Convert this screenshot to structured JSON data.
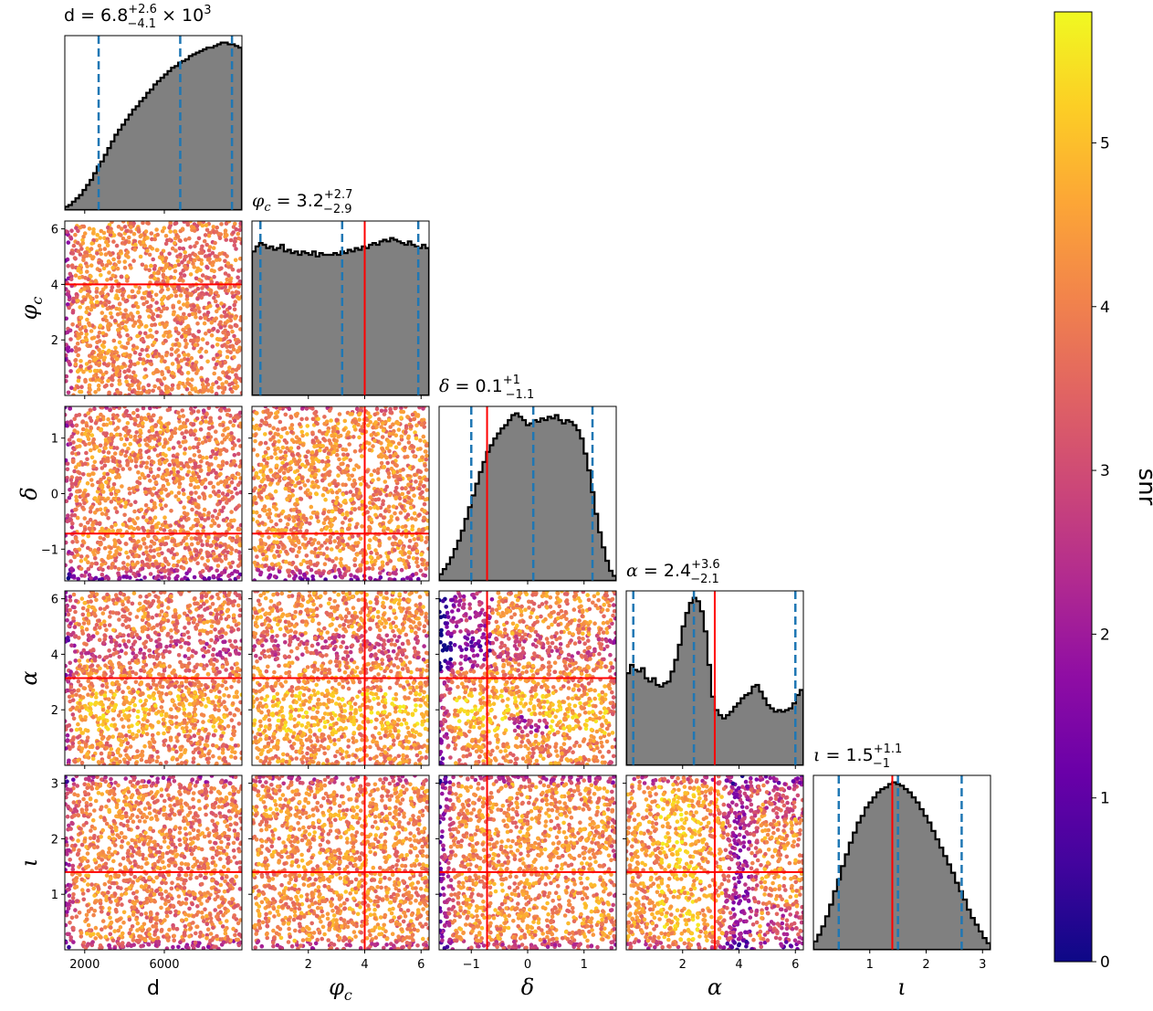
{
  "chart_data": {
    "type": "corner",
    "colorbar": {
      "label": "snr",
      "range": [
        0,
        5.8
      ],
      "ticks": [
        "0",
        "1",
        "2",
        "3",
        "4",
        "5"
      ],
      "colormap": "plasma"
    },
    "parameters": [
      {
        "key": "d",
        "label": "d",
        "range": [
          1000,
          9900
        ],
        "ticks": [
          {
            "v": 2000,
            "t": "2000"
          },
          {
            "v": 6000,
            "t": "6000"
          }
        ],
        "title": "d = 6.8^{+2.6}_{-4.1} × 10^3",
        "title_main": "d = 6.8",
        "title_sup": "+2.6",
        "title_sub": "−4.1",
        "title_tail": " × 10",
        "title_exp": "3",
        "quantiles": [
          2700,
          6800,
          9400
        ],
        "truth": null,
        "hist": [
          0.02,
          0.03,
          0.05,
          0.07,
          0.09,
          0.12,
          0.15,
          0.18,
          0.22,
          0.26,
          0.29,
          0.33,
          0.37,
          0.41,
          0.45,
          0.48,
          0.51,
          0.54,
          0.57,
          0.6,
          0.62,
          0.65,
          0.67,
          0.7,
          0.72,
          0.75,
          0.77,
          0.79,
          0.81,
          0.83,
          0.85,
          0.86,
          0.88,
          0.89,
          0.9,
          0.92,
          0.93,
          0.94,
          0.95,
          0.96,
          0.97,
          0.97,
          0.98,
          0.99,
          1.0,
          1.0,
          0.99,
          0.99,
          0.98,
          0.97
        ]
      },
      {
        "key": "phi_c",
        "label": "φ_c",
        "range": [
          0,
          6.283
        ],
        "ticks": [
          {
            "v": 2,
            "t": "2"
          },
          {
            "v": 4,
            "t": "4"
          },
          {
            "v": 6,
            "t": "6"
          }
        ],
        "title": "φ_c = 3.2^{+2.7}_{-2.9}",
        "title_main": "= 3.2",
        "title_sup": "+2.7",
        "title_sub": "−2.9",
        "quantiles": [
          0.3,
          3.2,
          5.9
        ],
        "truth": 4.0,
        "hist": [
          0.86,
          0.89,
          0.91,
          0.9,
          0.88,
          0.89,
          0.87,
          0.88,
          0.9,
          0.86,
          0.87,
          0.85,
          0.86,
          0.84,
          0.86,
          0.85,
          0.84,
          0.86,
          0.83,
          0.85,
          0.84,
          0.84,
          0.84,
          0.85,
          0.84,
          0.86,
          0.85,
          0.87,
          0.86,
          0.88,
          0.87,
          0.89,
          0.88,
          0.9,
          0.91,
          0.9,
          0.92,
          0.93,
          0.92,
          0.94,
          0.93,
          0.92,
          0.91,
          0.9,
          0.92,
          0.9,
          0.89,
          0.88,
          0.9,
          0.88
        ]
      },
      {
        "key": "delta",
        "label": "δ",
        "range": [
          -1.5708,
          1.5708
        ],
        "ticks": [
          {
            "v": -1,
            "t": "−1"
          },
          {
            "v": 0,
            "t": "0"
          },
          {
            "v": 1,
            "t": "1"
          }
        ],
        "title": "δ = 0.1^{+1}_{-1.1}",
        "title_main": "= 0.1",
        "title_sup": "+1",
        "title_sub": "−1.1",
        "quantiles": [
          -1.0,
          0.1,
          1.15
        ],
        "truth": -0.72,
        "hist": [
          0.04,
          0.07,
          0.1,
          0.14,
          0.19,
          0.24,
          0.3,
          0.37,
          0.44,
          0.51,
          0.58,
          0.65,
          0.71,
          0.77,
          0.81,
          0.85,
          0.88,
          0.91,
          0.93,
          0.96,
          0.99,
          1.0,
          0.98,
          0.96,
          0.93,
          0.94,
          0.96,
          0.95,
          0.97,
          0.96,
          0.98,
          0.97,
          0.99,
          0.96,
          0.94,
          0.96,
          0.95,
          0.93,
          0.9,
          0.85,
          0.76,
          0.66,
          0.53,
          0.4,
          0.29,
          0.2,
          0.12,
          0.06,
          0.03
        ]
      },
      {
        "key": "alpha",
        "label": "α",
        "range": [
          0,
          6.283
        ],
        "ticks": [
          {
            "v": 2,
            "t": "2"
          },
          {
            "v": 4,
            "t": "4"
          },
          {
            "v": 6,
            "t": "6"
          }
        ],
        "title": "α = 2.4^{+3.6}_{-2.1}",
        "title_main": "= 2.4",
        "title_sup": "+3.6",
        "title_sub": "−2.1",
        "quantiles": [
          0.25,
          2.4,
          6.0
        ],
        "truth": 3.14,
        "hist": [
          0.55,
          0.6,
          0.57,
          0.56,
          0.58,
          0.52,
          0.5,
          0.52,
          0.48,
          0.47,
          0.49,
          0.5,
          0.56,
          0.63,
          0.72,
          0.83,
          0.91,
          0.97,
          1.0,
          0.98,
          0.92,
          0.8,
          0.6,
          0.41,
          0.33,
          0.3,
          0.28,
          0.3,
          0.32,
          0.35,
          0.37,
          0.4,
          0.42,
          0.43,
          0.47,
          0.48,
          0.44,
          0.4,
          0.36,
          0.34,
          0.32,
          0.33,
          0.32,
          0.33,
          0.34,
          0.37,
          0.42,
          0.45
        ]
      },
      {
        "key": "iota",
        "label": "ι",
        "range": [
          0,
          3.1416
        ],
        "ticks": [
          {
            "v": 1,
            "t": "1"
          },
          {
            "v": 2,
            "t": "2"
          },
          {
            "v": 3,
            "t": "3"
          }
        ],
        "title": "ι = 1.5^{+1.1}_{-1}",
        "title_main": "= 1.5",
        "title_sup": "+1.1",
        "title_sub": "−1",
        "quantiles": [
          0.45,
          1.5,
          2.63
        ],
        "truth": 1.4,
        "hist": [
          0.05,
          0.09,
          0.14,
          0.2,
          0.27,
          0.35,
          0.42,
          0.5,
          0.57,
          0.64,
          0.7,
          0.76,
          0.8,
          0.85,
          0.88,
          0.91,
          0.94,
          0.96,
          0.97,
          0.99,
          1.0,
          0.99,
          0.98,
          0.96,
          0.94,
          0.91,
          0.88,
          0.84,
          0.8,
          0.76,
          0.71,
          0.66,
          0.61,
          0.56,
          0.51,
          0.46,
          0.4,
          0.35,
          0.3,
          0.24,
          0.19,
          0.15,
          0.11,
          0.07,
          0.04
        ]
      }
    ],
    "y_ticks": {
      "phi_c": [
        {
          "v": 2,
          "t": "2"
        },
        {
          "v": 4,
          "t": "4"
        },
        {
          "v": 6,
          "t": "6"
        }
      ],
      "delta": [
        {
          "v": -1,
          "t": "−1"
        },
        {
          "v": 0,
          "t": "0"
        },
        {
          "v": 1,
          "t": "1"
        }
      ],
      "alpha": [
        {
          "v": 2,
          "t": "2"
        },
        {
          "v": 4,
          "t": "4"
        },
        {
          "v": 6,
          "t": "6"
        }
      ],
      "iota": [
        {
          "v": 1,
          "t": "1"
        },
        {
          "v": 2,
          "t": "2"
        },
        {
          "v": 3,
          "t": "3"
        }
      ]
    },
    "colors": {
      "hist_fill": "#808080",
      "hist_edge": "#000000",
      "quantile_line": "#1f77b4",
      "truth_line": "#ff0000"
    }
  }
}
